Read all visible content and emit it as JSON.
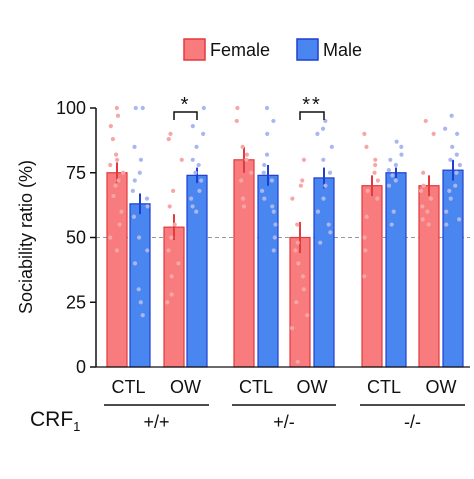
{
  "chart_data": {
    "type": "bar",
    "ylabel": "Sociability ratio (%)",
    "yticks": [
      "0",
      "25",
      "50",
      "75",
      "100"
    ],
    "ylim": [
      0,
      100
    ],
    "reference_line": 50,
    "legend": {
      "position": "top",
      "items": [
        "Female",
        "Male"
      ]
    },
    "colors": {
      "female_fill": "#f87c7e",
      "female_edge": "#e23a3e",
      "female_dots": "#f6a6a6",
      "male_fill": "#4a86ef",
      "male_edge": "#1e3fd2",
      "male_dots": "#a8b7f2",
      "refline": "#9a9a9a"
    },
    "xaxis_prefix": "CRF",
    "xaxis_prefix_sub": "1",
    "groups": [
      {
        "genotype": "+/+",
        "conditions": [
          {
            "label": "CTL",
            "female": {
              "mean": 75,
              "sem": 4,
              "points": [
                100,
                97,
                93,
                88,
                82,
                80,
                78,
                75,
                72,
                70,
                66,
                60,
                55,
                50,
                45
              ]
            },
            "male": {
              "mean": 63,
              "sem": 4,
              "points": [
                100,
                100,
                85,
                80,
                75,
                72,
                68,
                65,
                62,
                58,
                50,
                45,
                40,
                30,
                25,
                20
              ]
            }
          },
          {
            "label": "OW",
            "female": {
              "mean": 54,
              "sem": 5,
              "points": [
                90,
                88,
                80,
                68,
                62,
                55,
                50,
                45,
                40,
                35,
                28,
                25
              ]
            },
            "male": {
              "mean": 74,
              "sem": 3,
              "points": [
                100,
                93,
                90,
                85,
                80,
                78,
                75,
                72,
                68,
                65,
                62,
                60
              ]
            }
          }
        ],
        "significance": "*"
      },
      {
        "genotype": "+/-",
        "conditions": [
          {
            "label": "CTL",
            "female": {
              "mean": 80,
              "sem": 5,
              "points": [
                100,
                95,
                85,
                82,
                80,
                75,
                72,
                65,
                62
              ]
            },
            "male": {
              "mean": 74,
              "sem": 4,
              "points": [
                100,
                95,
                90,
                82,
                78,
                75,
                72,
                68,
                65,
                62,
                60,
                55,
                50,
                45
              ]
            }
          },
          {
            "label": "OW",
            "female": {
              "mean": 50,
              "sem": 6,
              "points": [
                80,
                72,
                70,
                65,
                55,
                48,
                45,
                40,
                35,
                30,
                25,
                20,
                15,
                2
              ]
            },
            "male": {
              "mean": 73,
              "sem": 4,
              "points": [
                95,
                92,
                90,
                85,
                80,
                75,
                70,
                65,
                60,
                55,
                52,
                48
              ]
            }
          }
        ],
        "significance": "**"
      },
      {
        "genotype": "-/-",
        "conditions": [
          {
            "label": "CTL",
            "female": {
              "mean": 70,
              "sem": 4,
              "points": [
                90,
                85,
                80,
                78,
                75,
                72,
                68,
                65,
                58,
                50,
                45,
                35
              ]
            },
            "male": {
              "mean": 75,
              "sem": 2,
              "points": [
                87,
                85,
                82,
                80,
                78,
                76,
                74,
                72,
                70,
                60,
                55
              ]
            }
          },
          {
            "label": "OW",
            "female": {
              "mean": 70,
              "sem": 4,
              "points": [
                95,
                90,
                75,
                70,
                68,
                65,
                62,
                60,
                57,
                55
              ]
            },
            "male": {
              "mean": 76,
              "sem": 4,
              "points": [
                97,
                92,
                90,
                85,
                82,
                80,
                78,
                75,
                70,
                68,
                65,
                60,
                57,
                55
              ]
            }
          }
        ],
        "significance": ""
      }
    ]
  }
}
